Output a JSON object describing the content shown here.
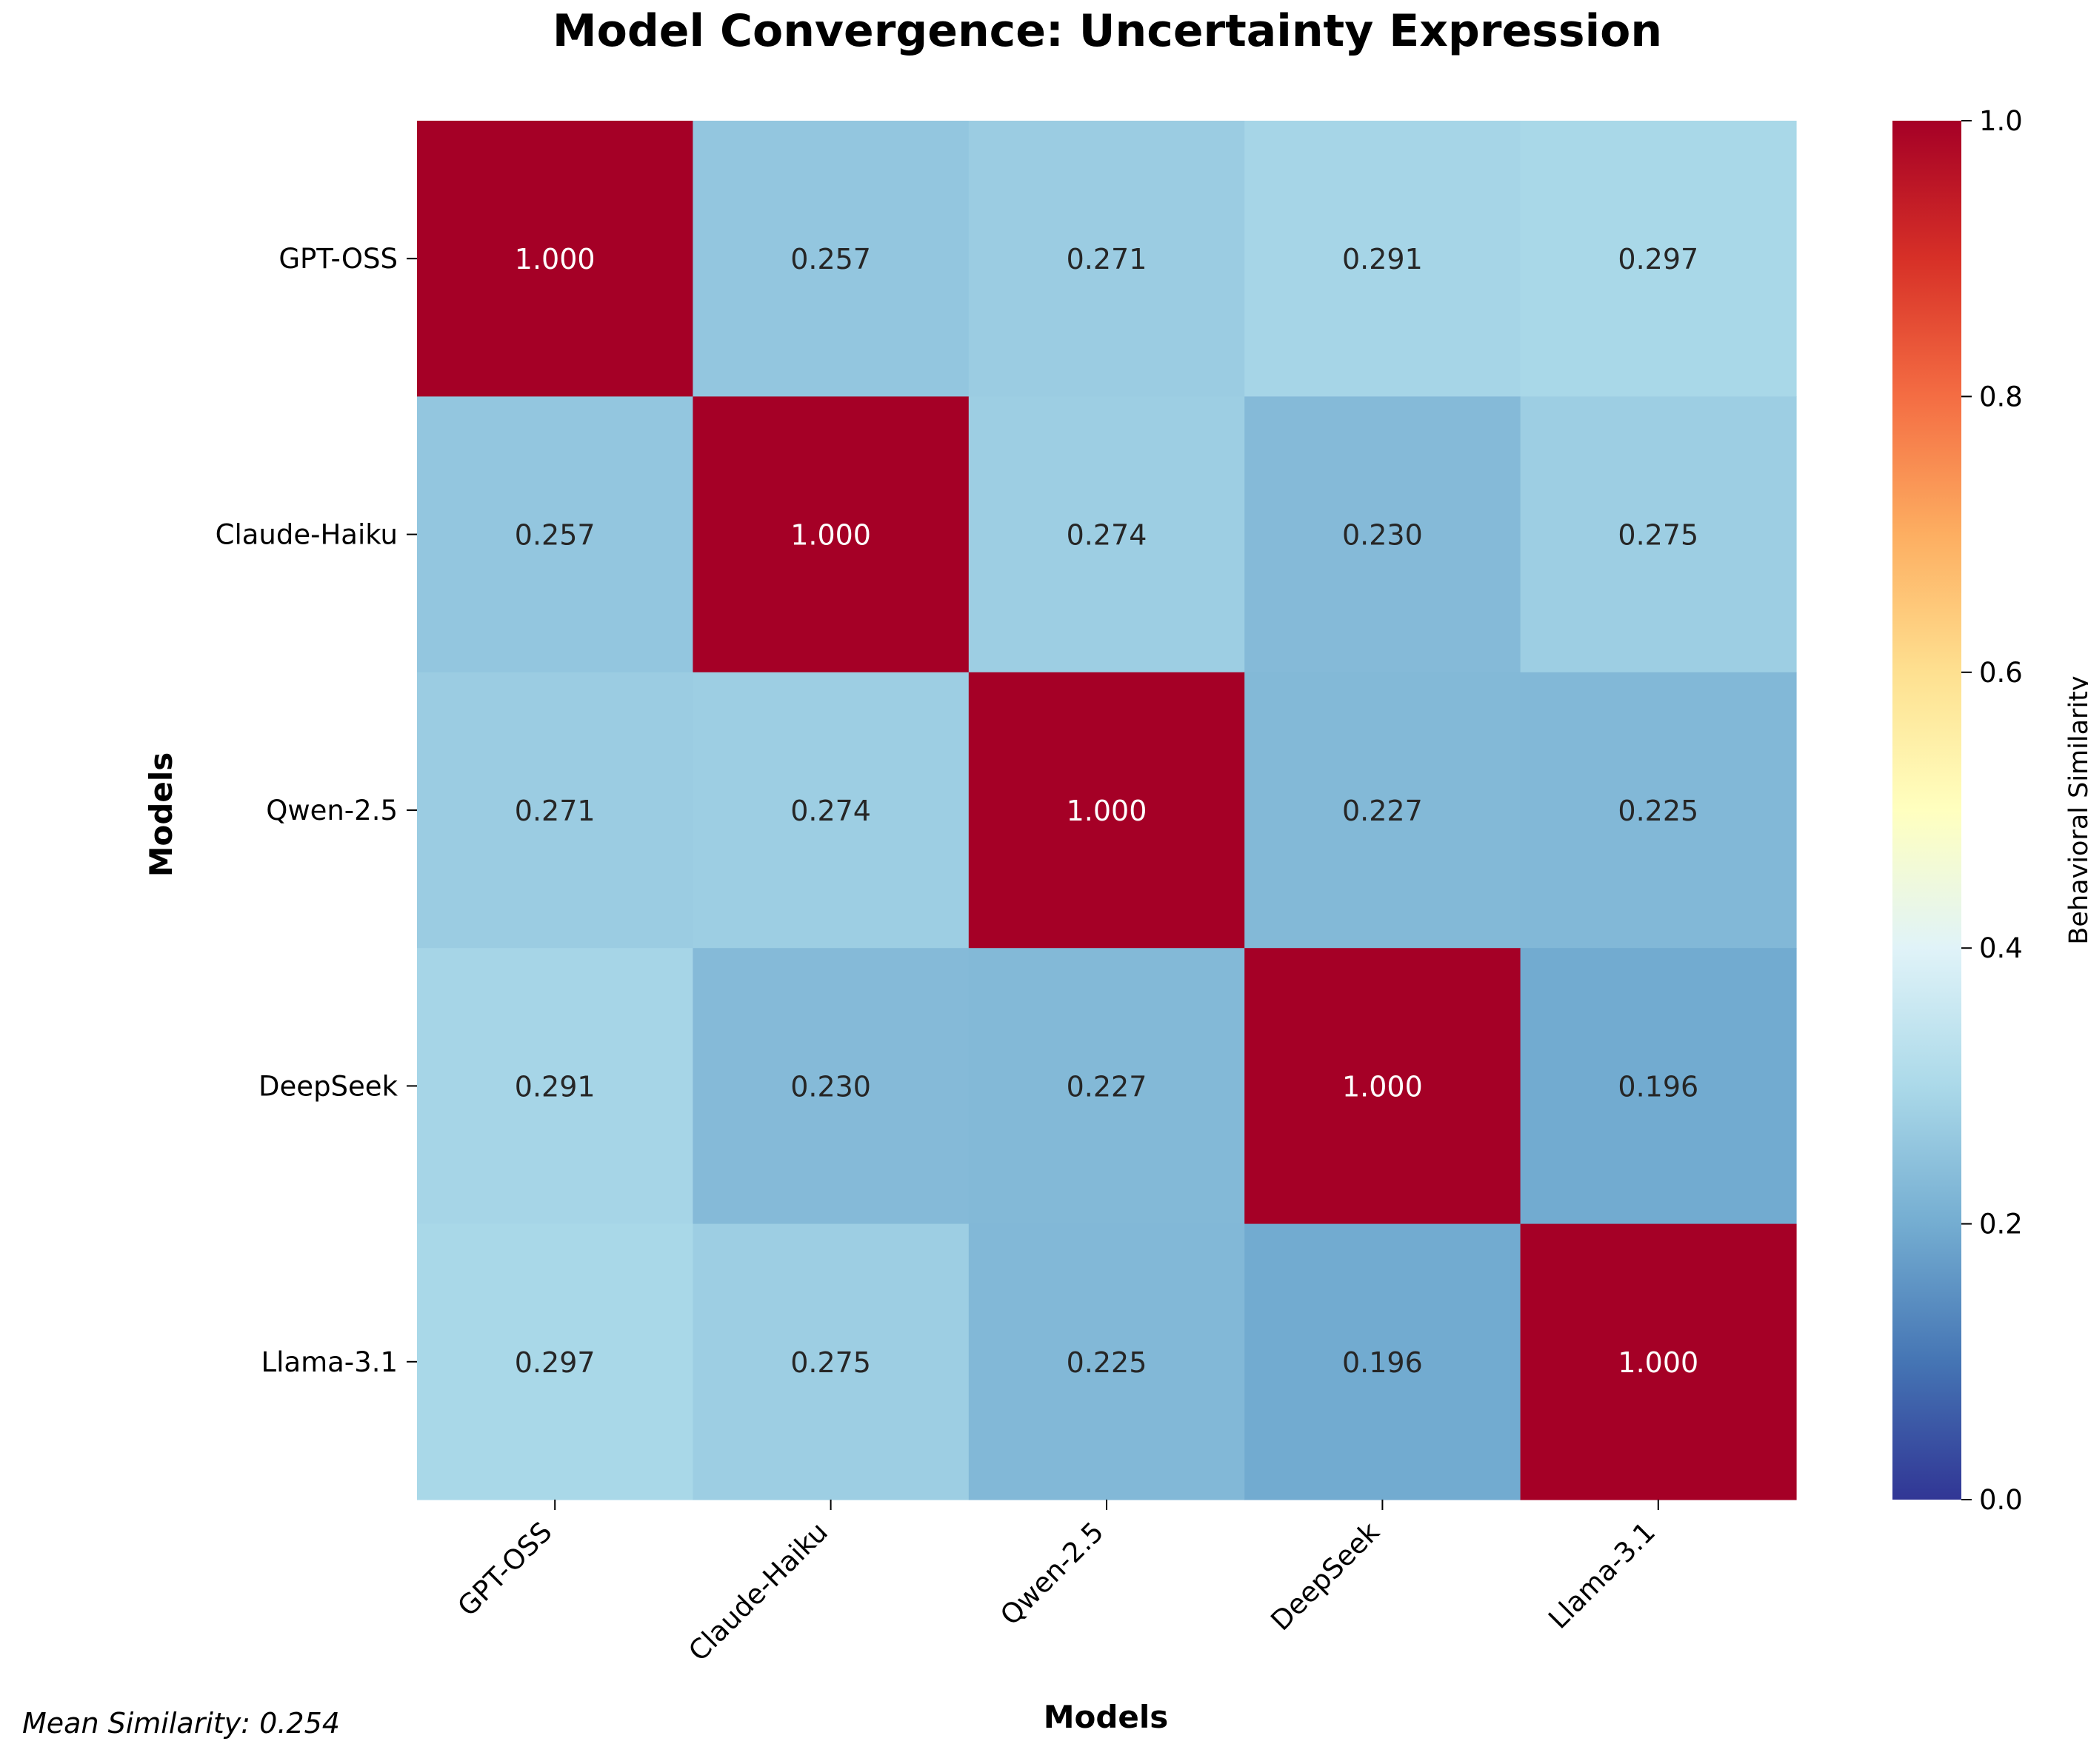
{
  "chart_data": {
    "type": "heatmap",
    "title": "Model Convergence: Uncertainty Expression",
    "xlabel": "Models",
    "ylabel": "Models",
    "x_categories": [
      "GPT-OSS",
      "Claude-Haiku",
      "Qwen-2.5",
      "DeepSeek",
      "Llama-3.1"
    ],
    "y_categories": [
      "GPT-OSS",
      "Claude-Haiku",
      "Qwen-2.5",
      "DeepSeek",
      "Llama-3.1"
    ],
    "values": [
      [
        1.0,
        0.257,
        0.271,
        0.291,
        0.297
      ],
      [
        0.257,
        1.0,
        0.274,
        0.23,
        0.275
      ],
      [
        0.271,
        0.274,
        1.0,
        0.227,
        0.225
      ],
      [
        0.291,
        0.23,
        0.227,
        1.0,
        0.196
      ],
      [
        0.297,
        0.275,
        0.225,
        0.196,
        1.0
      ]
    ],
    "value_format": "3 decimals",
    "colormap": "RdYlBu_r",
    "colorbar": {
      "label": "Behavioral Similarity",
      "range": [
        0.0,
        1.0
      ],
      "ticks": [
        "0.0",
        "0.2",
        "0.4",
        "0.6",
        "0.8",
        "1.0"
      ]
    },
    "annotation": "Mean Similarity: 0.254"
  }
}
